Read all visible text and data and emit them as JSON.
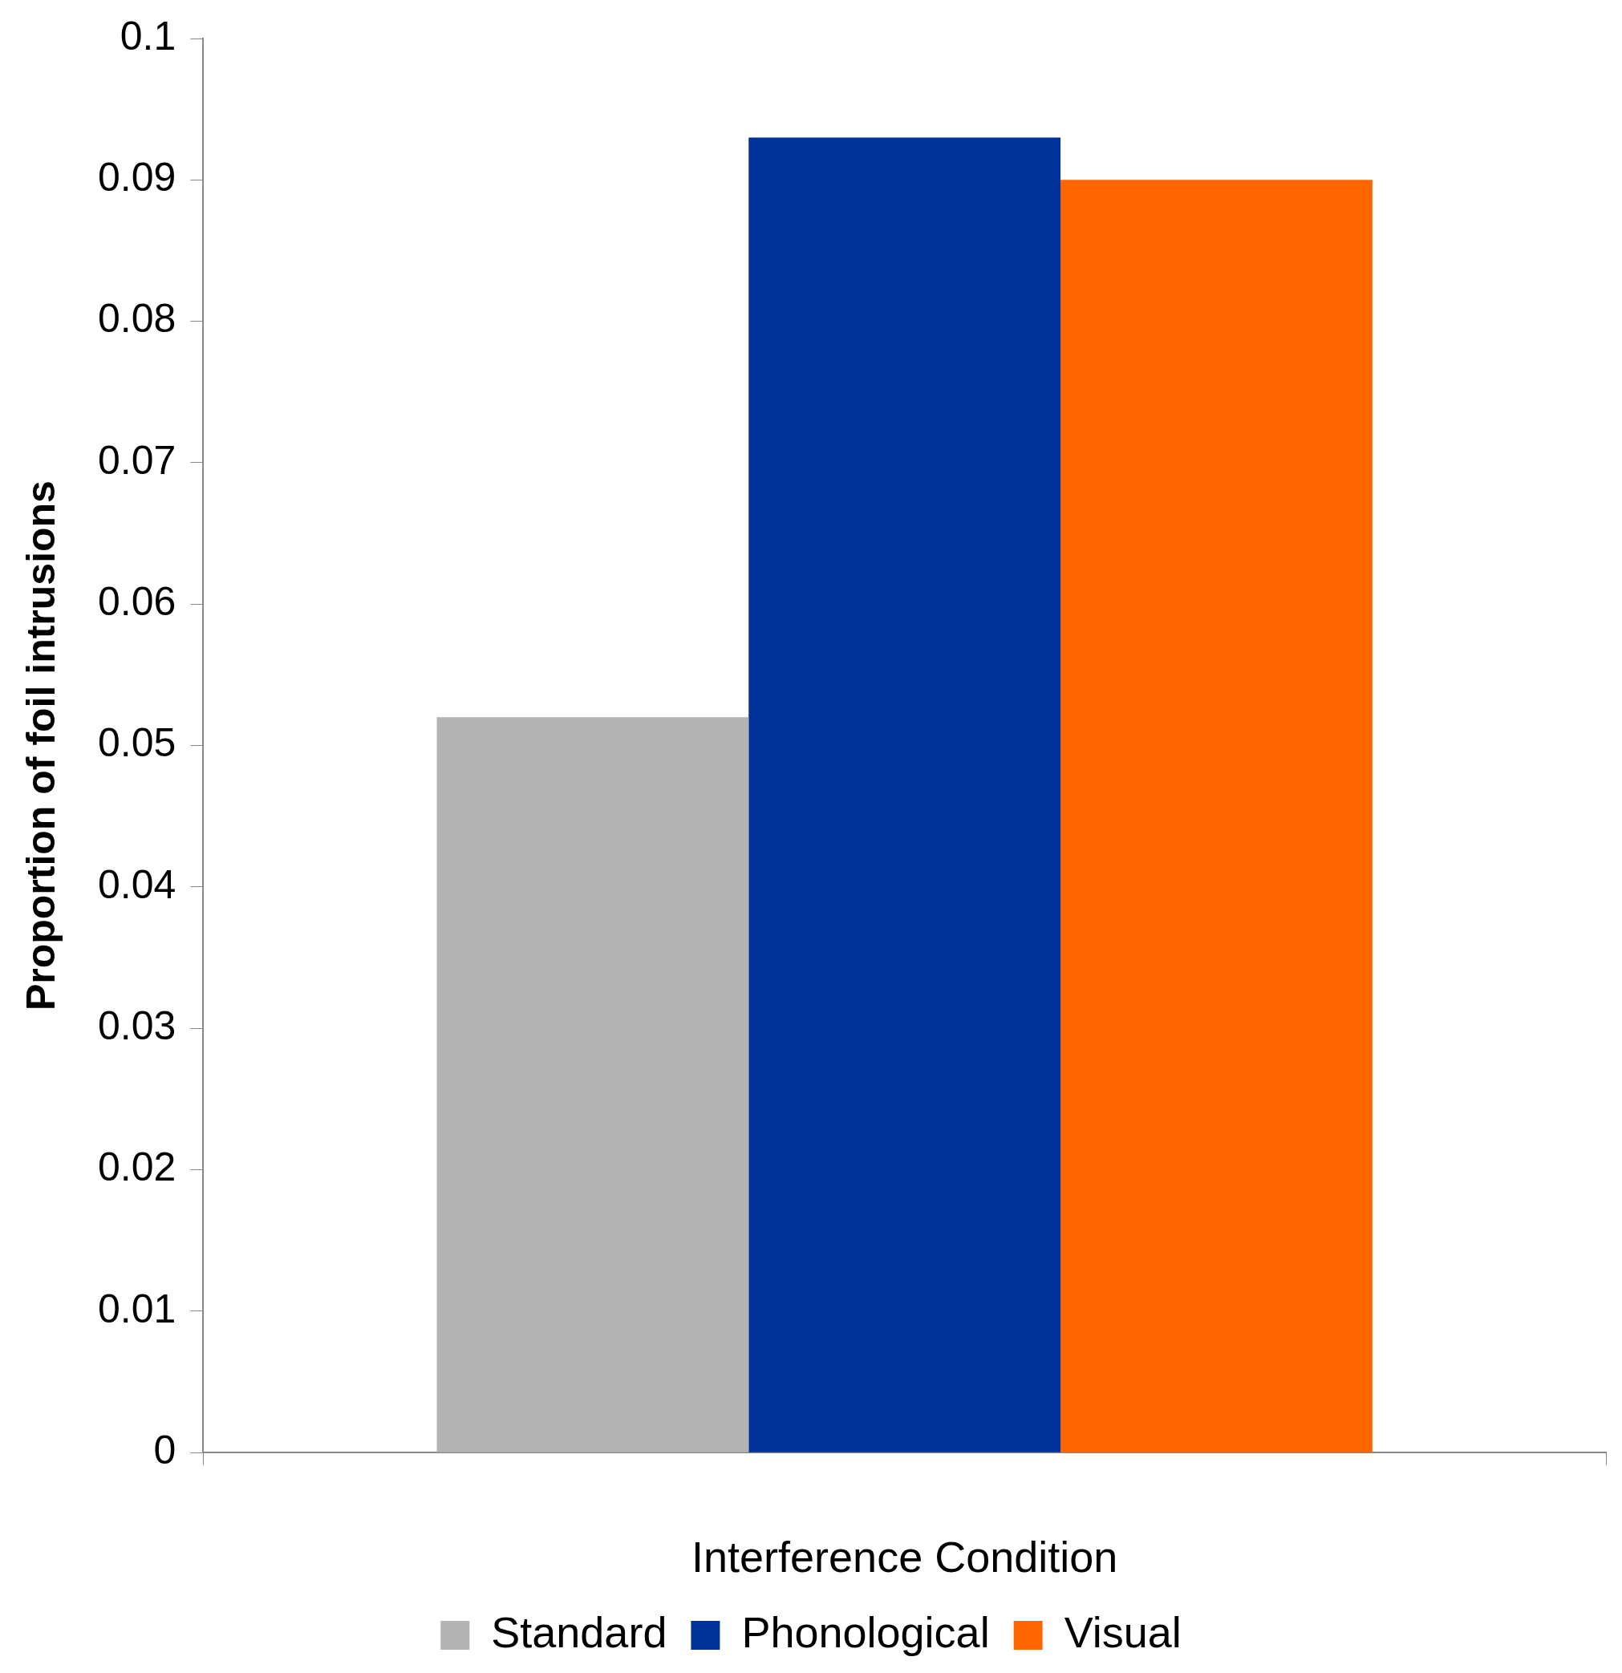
{
  "chart_data": {
    "type": "bar",
    "xlabel": "Interference Condition",
    "ylabel": "Proportion of foil intrusions",
    "categories": [
      null
    ],
    "series": [
      {
        "name": "Standard",
        "color": "#b3b3b3",
        "values": [
          0.052
        ]
      },
      {
        "name": "Phonological",
        "color": "#003399",
        "values": [
          0.093
        ]
      },
      {
        "name": "Visual",
        "color": "#ff6600",
        "values": [
          0.09
        ]
      }
    ],
    "ylim": [
      0,
      0.1
    ],
    "yticks": [
      0,
      0.01,
      0.02,
      0.03,
      0.04,
      0.05,
      0.06,
      0.07,
      0.08,
      0.09,
      0.1
    ],
    "grid": false,
    "legend": "bottom"
  }
}
